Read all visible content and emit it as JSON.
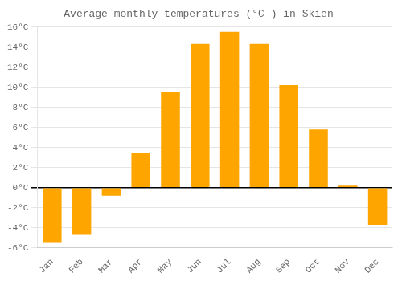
{
  "chart_data": {
    "type": "bar",
    "title": "Average monthly temperatures (°C ) in Skien",
    "categories": [
      "Jan",
      "Feb",
      "Mar",
      "Apr",
      "May",
      "Jun",
      "Jul",
      "Aug",
      "Sep",
      "Oct",
      "Nov",
      "Dec"
    ],
    "values": [
      -5.5,
      -4.7,
      -0.8,
      3.5,
      9.5,
      14.3,
      15.5,
      14.3,
      10.2,
      5.8,
      0.2,
      -3.7
    ],
    "color": "#FFA500",
    "ylim": [
      -6,
      16
    ],
    "yticks": [
      {
        "value": -6,
        "label": "-6°C"
      },
      {
        "value": -4,
        "label": "-4°C"
      },
      {
        "value": -2,
        "label": "-2°C"
      },
      {
        "value": 0,
        "label": "0°C"
      },
      {
        "value": 2,
        "label": "2°C"
      },
      {
        "value": 4,
        "label": "4°C"
      },
      {
        "value": 6,
        "label": "6°C"
      },
      {
        "value": 8,
        "label": "8°C"
      },
      {
        "value": 10,
        "label": "10°C"
      },
      {
        "value": 12,
        "label": "12°C"
      },
      {
        "value": 14,
        "label": "14°C"
      },
      {
        "value": 16,
        "label": "16°C"
      }
    ],
    "grid": true
  }
}
